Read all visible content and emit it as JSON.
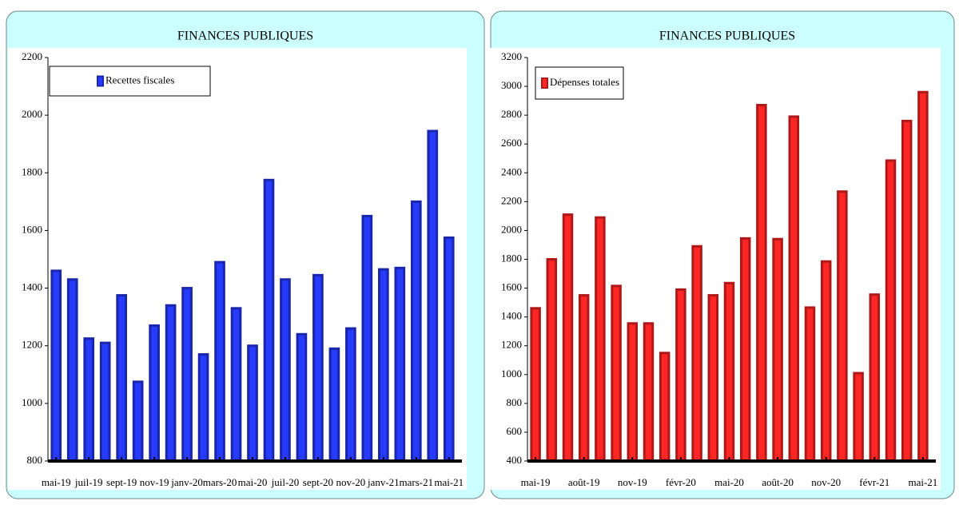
{
  "chart_data": [
    {
      "type": "bar",
      "title": "FINANCES PUBLIQUES",
      "categories": [
        "mai-19",
        null,
        "juil-19",
        null,
        "sept-19",
        null,
        "nov-19",
        null,
        "janv-20",
        null,
        "mars-20",
        null,
        "mai-20",
        null,
        "juil-20",
        null,
        "sept-20",
        null,
        "nov-20",
        null,
        "janv-21",
        null,
        "mars-21",
        null,
        "mai-21"
      ],
      "series": [
        {
          "name": "Recettes fiscales",
          "color": "#1f2fd6",
          "values": [
            1460,
            1430,
            1225,
            1210,
            1375,
            1075,
            1270,
            1340,
            1400,
            1170,
            1490,
            1330,
            1200,
            1775,
            1430,
            1240,
            1445,
            1190,
            1260,
            1650,
            1465,
            1470,
            1700,
            1945,
            1575
          ]
        }
      ],
      "ylim": [
        800,
        2200
      ],
      "yticks": [
        800,
        1000,
        1200,
        1400,
        1600,
        1800,
        2000,
        2200
      ],
      "grid": false,
      "legend": "top-left"
    },
    {
      "type": "bar",
      "title": "FINANCES PUBLIQUES",
      "categories": [
        "mai-19",
        null,
        null,
        "août-19",
        null,
        null,
        "nov-19",
        null,
        null,
        "févr-20",
        null,
        null,
        "mai-20",
        null,
        null,
        "août-20",
        null,
        null,
        "nov-20",
        null,
        null,
        "févr-21",
        null,
        null,
        "mai-21"
      ],
      "series": [
        {
          "name": "Dépenses totales",
          "color": "#d81e1e",
          "values": [
            1460,
            1800,
            2110,
            1550,
            2090,
            1615,
            1355,
            1355,
            1150,
            1590,
            1890,
            1550,
            1635,
            1945,
            2870,
            1940,
            2790,
            1465,
            1785,
            2270,
            1010,
            1555,
            2485,
            2760,
            2960
          ]
        }
      ],
      "ylim": [
        400,
        3200
      ],
      "yticks": [
        400,
        600,
        800,
        1000,
        1200,
        1400,
        1600,
        1800,
        2000,
        2200,
        2400,
        2600,
        2800,
        3000,
        3200
      ],
      "grid": false,
      "legend": "top-left"
    }
  ]
}
